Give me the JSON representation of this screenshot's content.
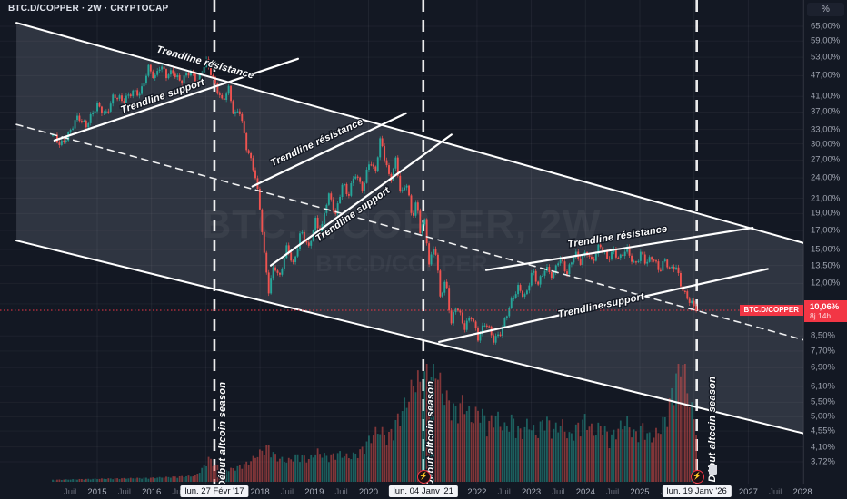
{
  "header": {
    "symbol_title": "BTC.D/COPPER · 2W · CRYPTOCAP"
  },
  "watermark": {
    "line1": "BTC.D/COPPER, 2W",
    "line2": "BTC.D/COPPER"
  },
  "price_scale": {
    "unit_button": "%",
    "scale_type": "log",
    "ticks": [
      {
        "label": "65,00%",
        "value": 65
      },
      {
        "label": "59,00%",
        "value": 59
      },
      {
        "label": "53,00%",
        "value": 53
      },
      {
        "label": "47,00%",
        "value": 47
      },
      {
        "label": "41,00%",
        "value": 41
      },
      {
        "label": "37,00%",
        "value": 37
      },
      {
        "label": "33,00%",
        "value": 33
      },
      {
        "label": "30,00%",
        "value": 30
      },
      {
        "label": "27,00%",
        "value": 27
      },
      {
        "label": "24,00%",
        "value": 24
      },
      {
        "label": "21,00%",
        "value": 21
      },
      {
        "label": "19,00%",
        "value": 19
      },
      {
        "label": "17,00%",
        "value": 17
      },
      {
        "label": "15,00%",
        "value": 15
      },
      {
        "label": "13,50%",
        "value": 13.5
      },
      {
        "label": "12,00%",
        "value": 12
      },
      {
        "label": "10,50%",
        "value": 10.5
      },
      {
        "label": "8,50%",
        "value": 8.5
      },
      {
        "label": "7,70%",
        "value": 7.7
      },
      {
        "label": "6,90%",
        "value": 6.9
      },
      {
        "label": "6,10%",
        "value": 6.1
      },
      {
        "label": "5,50%",
        "value": 5.5
      },
      {
        "label": "5,00%",
        "value": 5
      },
      {
        "label": "4,55%",
        "value": 4.55
      },
      {
        "label": "4,10%",
        "value": 4.1
      },
      {
        "label": "3,72%",
        "value": 3.72
      }
    ],
    "last_price": {
      "label": "10,06%",
      "countdown": "8j 14h",
      "value": 10.06,
      "symbol_tag": "BTC.D/COPPER",
      "color": "#f23645"
    }
  },
  "time_scale": {
    "ticks": [
      {
        "label": "Juil",
        "yr": 2014.5,
        "minor": true
      },
      {
        "label": "2015",
        "yr": 2015
      },
      {
        "label": "Juil",
        "yr": 2015.5,
        "minor": true
      },
      {
        "label": "2016",
        "yr": 2016
      },
      {
        "label": "Juil",
        "yr": 2016.5,
        "minor": true
      },
      {
        "label": "2017",
        "yr": 2017
      },
      {
        "label": "Juil",
        "yr": 2017.5,
        "minor": true
      },
      {
        "label": "2018",
        "yr": 2018
      },
      {
        "label": "Juil",
        "yr": 2018.5,
        "minor": true
      },
      {
        "label": "2019",
        "yr": 2019
      },
      {
        "label": "Juil",
        "yr": 2019.5,
        "minor": true
      },
      {
        "label": "2020",
        "yr": 2020
      },
      {
        "label": "Juil",
        "yr": 2020.5,
        "minor": true
      },
      {
        "label": "2021",
        "yr": 2021
      },
      {
        "label": "Juil",
        "yr": 2021.5,
        "minor": true
      },
      {
        "label": "2022",
        "yr": 2022
      },
      {
        "label": "Juil",
        "yr": 2022.5,
        "minor": true
      },
      {
        "label": "2023",
        "yr": 2023
      },
      {
        "label": "Juil",
        "yr": 2023.5,
        "minor": true
      },
      {
        "label": "2024",
        "yr": 2024
      },
      {
        "label": "Juil",
        "yr": 2024.5,
        "minor": true
      },
      {
        "label": "2025",
        "yr": 2025
      },
      {
        "label": "Juil",
        "yr": 2025.5,
        "minor": true
      },
      {
        "label": "2026",
        "yr": 2026
      },
      {
        "label": "Juil",
        "yr": 2026.5,
        "minor": true
      },
      {
        "label": "2027",
        "yr": 2027
      },
      {
        "label": "Juil",
        "yr": 2027.5,
        "minor": true
      },
      {
        "label": "2028",
        "yr": 2028
      }
    ]
  },
  "chart_data": {
    "type": "candlestick",
    "symbol": "BTC.D/COPPER",
    "timeframe": "2W",
    "has_volume": true,
    "x_unit": "decimal_year",
    "y_unit": "percent",
    "price_scale_type": "log",
    "visible_time_range": [
      2013.5,
      2028.2
    ],
    "visible_price_range": [
      3.5,
      66
    ],
    "colors": {
      "up": "#26a69a",
      "down": "#ef5350",
      "accent": "#f23645",
      "line": "#ffffff",
      "channel_fill": "rgba(199,206,224,0.16)",
      "grid": "rgba(255,255,255,0.055)"
    },
    "price_anchors": [
      [
        2014.18,
        31.5
      ],
      [
        2014.32,
        30.2
      ],
      [
        2014.5,
        32.3
      ],
      [
        2014.65,
        35.8
      ],
      [
        2014.8,
        34.3
      ],
      [
        2015.0,
        38.2
      ],
      [
        2015.15,
        36.6
      ],
      [
        2015.3,
        41.2
      ],
      [
        2015.47,
        39.3
      ],
      [
        2015.64,
        43.0
      ],
      [
        2015.8,
        41.2
      ],
      [
        2015.95,
        49.8
      ],
      [
        2016.06,
        46.8
      ],
      [
        2016.16,
        50.3
      ],
      [
        2016.27,
        46.4
      ],
      [
        2016.4,
        48.4
      ],
      [
        2016.55,
        45.4
      ],
      [
        2016.7,
        47.6
      ],
      [
        2016.85,
        45.8
      ],
      [
        2017.0,
        51.8
      ],
      [
        2017.16,
        44.3
      ],
      [
        2017.3,
        40.3
      ],
      [
        2017.42,
        43.2
      ],
      [
        2017.52,
        35.4
      ],
      [
        2017.62,
        37.6
      ],
      [
        2017.75,
        29.8
      ],
      [
        2017.9,
        24.6
      ],
      [
        2018.0,
        19.3
      ],
      [
        2018.08,
        14.4
      ],
      [
        2018.16,
        11.6
      ],
      [
        2018.26,
        13.6
      ],
      [
        2018.36,
        12.2
      ],
      [
        2018.5,
        15.4
      ],
      [
        2018.62,
        13.6
      ],
      [
        2018.75,
        16.7
      ],
      [
        2018.9,
        15.1
      ],
      [
        2019.02,
        18.4
      ],
      [
        2019.12,
        16.4
      ],
      [
        2019.26,
        21.4
      ],
      [
        2019.4,
        19.0
      ],
      [
        2019.52,
        23.4
      ],
      [
        2019.62,
        20.9
      ],
      [
        2019.76,
        24.8
      ],
      [
        2019.9,
        22.4
      ],
      [
        2020.02,
        26.8
      ],
      [
        2020.12,
        24.3
      ],
      [
        2020.22,
        31.4
      ],
      [
        2020.3,
        27.6
      ],
      [
        2020.4,
        23.3
      ],
      [
        2020.5,
        26.6
      ],
      [
        2020.6,
        21.3
      ],
      [
        2020.7,
        23.8
      ],
      [
        2020.8,
        18.3
      ],
      [
        2020.88,
        20.3
      ],
      [
        2020.96,
        16.4
      ],
      [
        2021.02,
        18.7
      ],
      [
        2021.12,
        13.7
      ],
      [
        2021.22,
        15.6
      ],
      [
        2021.32,
        10.8
      ],
      [
        2021.42,
        12.2
      ],
      [
        2021.52,
        9.3
      ],
      [
        2021.62,
        10.5
      ],
      [
        2021.76,
        8.8
      ],
      [
        2021.9,
        9.8
      ],
      [
        2022.02,
        8.45
      ],
      [
        2022.16,
        9.2
      ],
      [
        2022.3,
        8.3
      ],
      [
        2022.46,
        8.9
      ],
      [
        2022.6,
        10.2
      ],
      [
        2022.76,
        11.8
      ],
      [
        2022.9,
        11.0
      ],
      [
        2023.02,
        12.9
      ],
      [
        2023.12,
        11.9
      ],
      [
        2023.26,
        13.5
      ],
      [
        2023.4,
        12.4
      ],
      [
        2023.52,
        14.2
      ],
      [
        2023.66,
        13.0
      ],
      [
        2023.8,
        14.6
      ],
      [
        2023.9,
        13.6
      ],
      [
        2024.02,
        15.0
      ],
      [
        2024.12,
        13.9
      ],
      [
        2024.26,
        15.3
      ],
      [
        2024.4,
        14.1
      ],
      [
        2024.52,
        15.1
      ],
      [
        2024.62,
        14.0
      ],
      [
        2024.76,
        14.9
      ],
      [
        2024.9,
        13.7
      ],
      [
        2025.02,
        14.7
      ],
      [
        2025.12,
        13.5
      ],
      [
        2025.24,
        14.3
      ],
      [
        2025.36,
        13.2
      ],
      [
        2025.46,
        14.0
      ],
      [
        2025.56,
        12.9
      ],
      [
        2025.66,
        13.5
      ],
      [
        2025.76,
        12.0
      ],
      [
        2025.86,
        11.0
      ],
      [
        2025.94,
        10.5
      ],
      [
        2026.02,
        10.06
      ]
    ],
    "volume_anchors": [
      [
        2014.2,
        2
      ],
      [
        2015.0,
        3
      ],
      [
        2016.0,
        4
      ],
      [
        2016.8,
        6
      ],
      [
        2016.95,
        14
      ],
      [
        2017.05,
        24
      ],
      [
        2017.2,
        16
      ],
      [
        2017.4,
        12
      ],
      [
        2017.6,
        15
      ],
      [
        2017.8,
        20
      ],
      [
        2018.0,
        30
      ],
      [
        2018.15,
        36
      ],
      [
        2018.3,
        25
      ],
      [
        2018.5,
        21
      ],
      [
        2018.7,
        27
      ],
      [
        2018.9,
        23
      ],
      [
        2019.05,
        31
      ],
      [
        2019.25,
        25
      ],
      [
        2019.45,
        29
      ],
      [
        2019.65,
        25
      ],
      [
        2019.85,
        31
      ],
      [
        2020.05,
        46
      ],
      [
        2020.2,
        54
      ],
      [
        2020.35,
        44
      ],
      [
        2020.5,
        60
      ],
      [
        2020.62,
        72
      ],
      [
        2020.75,
        88
      ],
      [
        2020.88,
        108
      ],
      [
        2021.0,
        92
      ],
      [
        2021.08,
        126
      ],
      [
        2021.16,
        105
      ],
      [
        2021.24,
        118
      ],
      [
        2021.34,
        96
      ],
      [
        2021.45,
        84
      ],
      [
        2021.6,
        72
      ],
      [
        2021.75,
        82
      ],
      [
        2021.9,
        64
      ],
      [
        2022.05,
        74
      ],
      [
        2022.2,
        58
      ],
      [
        2022.35,
        68
      ],
      [
        2022.5,
        54
      ],
      [
        2022.65,
        64
      ],
      [
        2022.8,
        50
      ],
      [
        2022.95,
        60
      ],
      [
        2023.1,
        48
      ],
      [
        2023.25,
        66
      ],
      [
        2023.4,
        52
      ],
      [
        2023.55,
        60
      ],
      [
        2023.7,
        46
      ],
      [
        2023.85,
        56
      ],
      [
        2024.0,
        64
      ],
      [
        2024.15,
        50
      ],
      [
        2024.3,
        58
      ],
      [
        2024.45,
        44
      ],
      [
        2024.6,
        54
      ],
      [
        2024.75,
        62
      ],
      [
        2024.9,
        48
      ],
      [
        2025.05,
        56
      ],
      [
        2025.2,
        44
      ],
      [
        2025.35,
        52
      ],
      [
        2025.5,
        68
      ],
      [
        2025.6,
        92
      ],
      [
        2025.7,
        114
      ],
      [
        2025.78,
        128
      ],
      [
        2025.86,
        100
      ],
      [
        2025.94,
        78
      ],
      [
        2026.02,
        58
      ]
    ],
    "annotations": {
      "channel": {
        "top": {
          "from": [
            2013.51,
            66.5
          ],
          "to": [
            2028.05,
            15.6
          ]
        },
        "bottom": {
          "from": [
            2013.51,
            15.9
          ],
          "to": [
            2028.05,
            4.47
          ]
        },
        "midline": {
          "from": [
            2013.51,
            34.1
          ],
          "to": [
            2028.05,
            8.26
          ],
          "style": "dashed"
        }
      },
      "trendlines": [
        {
          "label": "Trendline résistance",
          "on_channel_top": true
        },
        {
          "label": "Trendline support",
          "from": [
            2014.21,
            30.7
          ],
          "to": [
            2018.7,
            52.5
          ]
        },
        {
          "label": "Trendline résistance",
          "from": [
            2017.86,
            22.7
          ],
          "to": [
            2020.69,
            36.7
          ]
        },
        {
          "label": "Trendline support",
          "from": [
            2018.2,
            13.5
          ],
          "to": [
            2021.53,
            31.9
          ]
        },
        {
          "label": "Trendline résistance",
          "from": [
            2022.17,
            13.1
          ],
          "to": [
            2027.08,
            17.3
          ]
        },
        {
          "label": "Trendline support",
          "from": [
            2021.3,
            8.17
          ],
          "to": [
            2027.36,
            13.2
          ]
        }
      ],
      "events": [
        {
          "label": "Début altcoin season",
          "date_label": "lun. 27 Févr '17",
          "yr": 2017.16,
          "marker": false,
          "flag": false
        },
        {
          "label": "Début altcoin season",
          "date_label": "lun. 04 Janv '21",
          "yr": 2021.01,
          "marker": true,
          "flag": false
        },
        {
          "label": "Début altcoin season",
          "date_label": "lun. 19 Janv '26",
          "yr": 2026.05,
          "marker": true,
          "flag": true
        }
      ]
    }
  }
}
